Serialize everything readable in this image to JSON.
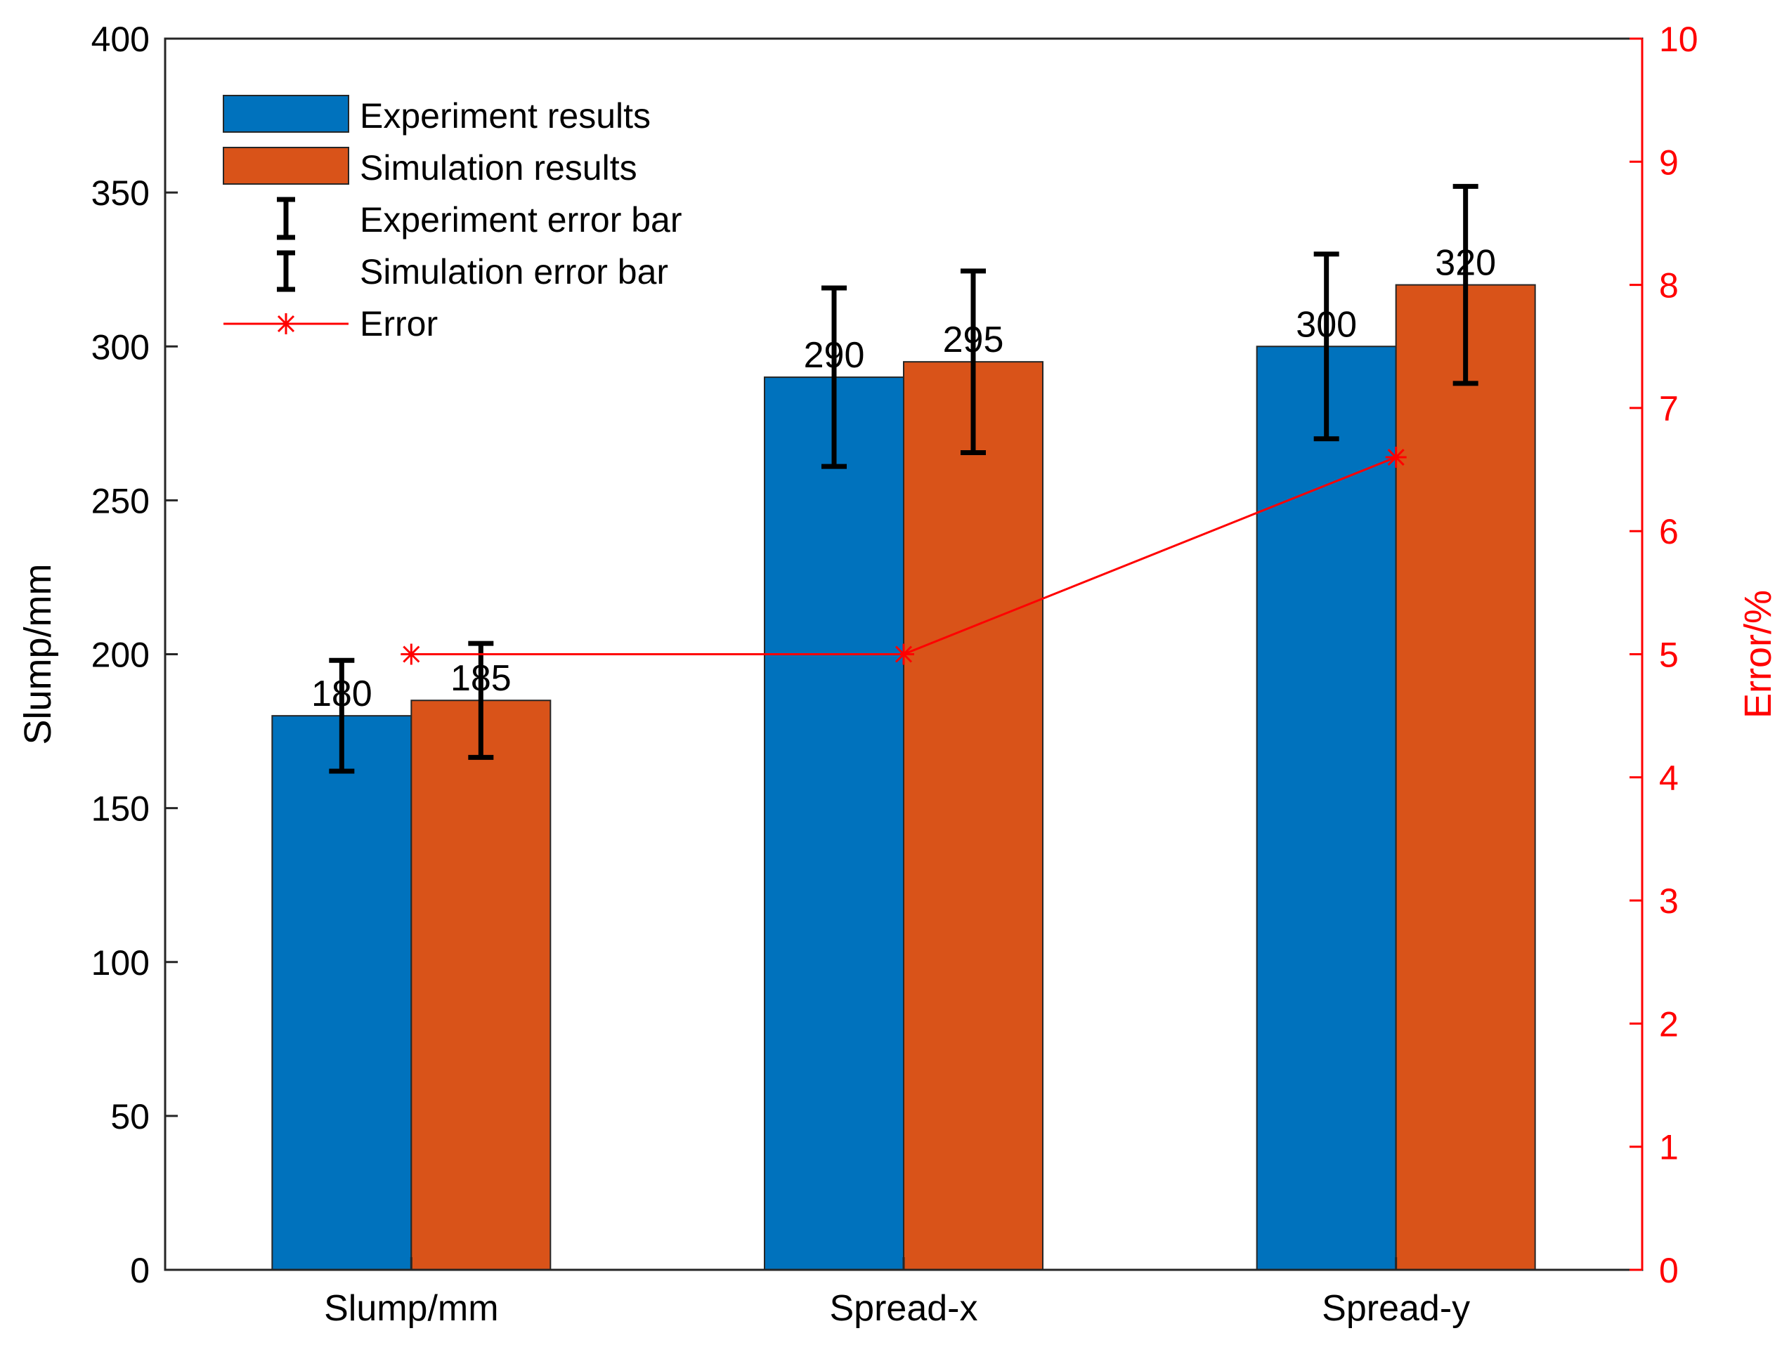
{
  "chart_data": {
    "type": "bar",
    "categories": [
      "Slump/mm",
      "Spread-x",
      "Spread-y"
    ],
    "series": [
      {
        "name": "Experiment results",
        "values": [
          180,
          290,
          300
        ],
        "color": "#0072BD",
        "error": [
          18,
          29,
          30
        ]
      },
      {
        "name": "Simulation results",
        "values": [
          185,
          295,
          320
        ],
        "color": "#D95319",
        "error": [
          18.5,
          29.5,
          32
        ]
      }
    ],
    "data_labels": [
      "180",
      "185",
      "290",
      "295",
      "300",
      "320"
    ],
    "error_bar_legend": [
      "Experiment error bar",
      "Simulation error bar"
    ],
    "line_series": {
      "name": "Error",
      "values": [
        5,
        5,
        6.6
      ],
      "color": "#FF0000",
      "marker": "asterisk",
      "axis": "right"
    },
    "ylabel": "Slump/mm",
    "ylabel_right": "Error/%",
    "ylim": [
      0,
      400
    ],
    "ylim_right": [
      0,
      10
    ],
    "yticks": [
      "0",
      "50",
      "100",
      "150",
      "200",
      "250",
      "300",
      "350",
      "400"
    ],
    "yticks_right": [
      "0",
      "1",
      "2",
      "3",
      "4",
      "5",
      "6",
      "7",
      "8",
      "9",
      "10"
    ],
    "grid": false,
    "legend_position": "top-left",
    "axis_color_left": "#000000",
    "axis_color_right": "#FF0000"
  }
}
